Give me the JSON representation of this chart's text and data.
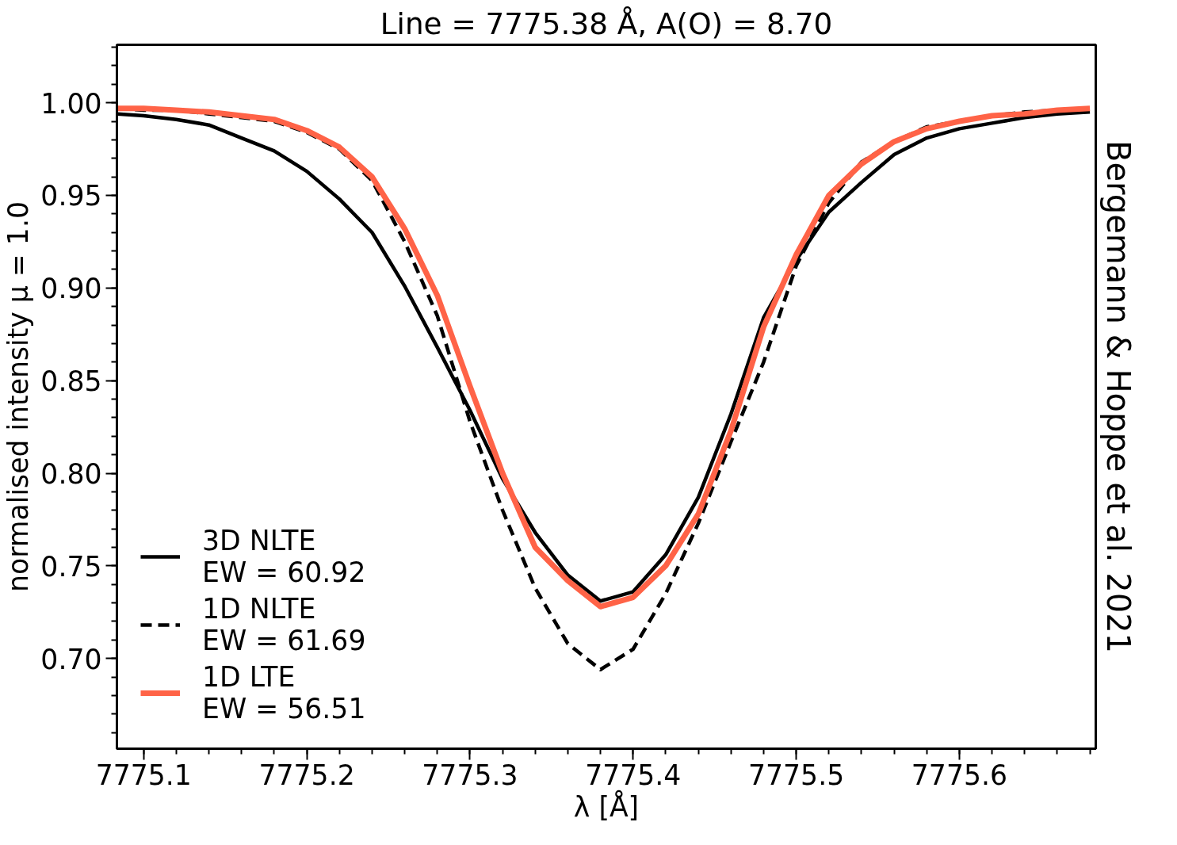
{
  "chart_data": {
    "type": "line",
    "title": "Line = 7775.38 Å, A(O) = 8.70",
    "xlabel": "λ [Å]",
    "ylabel": "normalised intensity μ = 1.0",
    "annotations": [
      "Bergemann & Hoppe et al. 2021"
    ],
    "x": [
      7775.084,
      7775.1,
      7775.12,
      7775.14,
      7775.16,
      7775.18,
      7775.2,
      7775.22,
      7775.24,
      7775.26,
      7775.28,
      7775.3,
      7775.32,
      7775.34,
      7775.36,
      7775.38,
      7775.4,
      7775.42,
      7775.44,
      7775.46,
      7775.48,
      7775.5,
      7775.52,
      7775.54,
      7775.56,
      7775.58,
      7775.6,
      7775.62,
      7775.64,
      7775.66,
      7775.68
    ],
    "series": [
      {
        "name": "3D NLTE\nEW = 60.92",
        "color": "#000000",
        "line_style": "solid",
        "values": [
          0.994,
          0.993,
          0.991,
          0.988,
          0.981,
          0.974,
          0.963,
          0.948,
          0.93,
          0.901,
          0.868,
          0.834,
          0.797,
          0.768,
          0.745,
          0.731,
          0.736,
          0.756,
          0.787,
          0.832,
          0.884,
          0.915,
          0.941,
          0.957,
          0.972,
          0.981,
          0.986,
          0.989,
          0.992,
          0.994,
          0.995
        ]
      },
      {
        "name": "1D NLTE\nEW = 61.69",
        "color": "#000000",
        "line_style": "dashed",
        "values": [
          0.997,
          0.996,
          0.996,
          0.994,
          0.992,
          0.99,
          0.984,
          0.975,
          0.958,
          0.925,
          0.885,
          0.828,
          0.78,
          0.738,
          0.708,
          0.694,
          0.705,
          0.735,
          0.773,
          0.817,
          0.86,
          0.912,
          0.946,
          0.968,
          0.979,
          0.987,
          0.99,
          0.993,
          0.995,
          0.996,
          0.997
        ]
      },
      {
        "name": "1D LTE\nEW = 56.51",
        "color": "#ff6347",
        "line_style": "solid",
        "values": [
          0.997,
          0.997,
          0.996,
          0.995,
          0.993,
          0.991,
          0.985,
          0.976,
          0.96,
          0.932,
          0.896,
          0.847,
          0.8,
          0.76,
          0.742,
          0.728,
          0.733,
          0.75,
          0.778,
          0.823,
          0.879,
          0.918,
          0.95,
          0.967,
          0.979,
          0.986,
          0.99,
          0.993,
          0.994,
          0.996,
          0.997
        ]
      }
    ],
    "xlim": [
      7775.0836,
      7775.6836
    ],
    "ylim": [
      0.6513,
      1.0313
    ],
    "xticks": [
      7775.1,
      7775.2,
      7775.3,
      7775.4,
      7775.5,
      7775.6
    ],
    "yticks": [
      {
        "value": 0.7,
        "label": "0.70"
      },
      {
        "value": 0.75,
        "label": "0.75"
      },
      {
        "value": 0.8,
        "label": "0.80"
      },
      {
        "value": 0.85,
        "label": "0.85"
      },
      {
        "value": 0.9,
        "label": "0.90"
      },
      {
        "value": 0.95,
        "label": "0.95"
      },
      {
        "value": 1.0,
        "label": "1.00"
      }
    ],
    "legend": "bottom left",
    "grid": false,
    "marker": "none"
  }
}
